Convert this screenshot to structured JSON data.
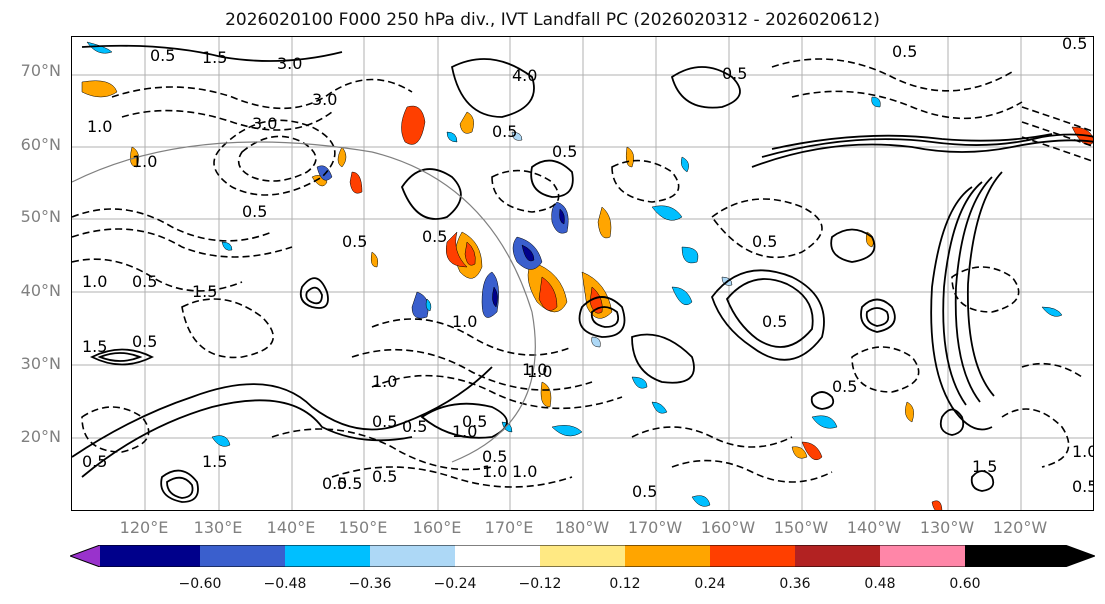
{
  "title": "2026020100 F000 250 hPa div., IVT Landfall PC (2026020312 - 2026020612)",
  "map": {
    "lat_labels": [
      "70°N",
      "60°N",
      "50°N",
      "40°N",
      "30°N",
      "20°N"
    ],
    "lon_labels": [
      "120°E",
      "130°E",
      "140°E",
      "150°E",
      "160°E",
      "170°E",
      "180°W",
      "170°W",
      "160°W",
      "150°W",
      "140°W",
      "130°W",
      "120°W"
    ],
    "contour_labels": [
      "0.5",
      "1.5",
      "3.0",
      "4.0",
      "3.0",
      "0.5",
      "0.5",
      "1.0",
      "0.5",
      "0.5",
      "3.0",
      "1.0",
      "0.5",
      "0.5",
      "1.0",
      "0.5",
      "0.5",
      "1.0",
      "1.0",
      "1.5",
      "0.5",
      "0.5",
      "1.0",
      "0.5",
      "0.5",
      "0.5",
      "0.5",
      "1.0",
      "0.5",
      "0.5",
      "0.5",
      "1.5",
      "0.5",
      "1.5",
      "0.5",
      "0.5",
      "1.0",
      "1.0",
      "1.0",
      "0.5",
      "1.0",
      "0.5",
      "1.5",
      "0.5"
    ],
    "colors": {
      "gridline": "#b0b0b0",
      "coastline": "#000000",
      "contour": "#000000"
    }
  },
  "colorbar": {
    "colors": [
      "#9932CC",
      "#00008B",
      "#3A5FCD",
      "#00BFFF",
      "#ADD8F6",
      "#FFFFFF",
      "#FFE983",
      "#FFA500",
      "#FF3F00",
      "#B22222",
      "#FF86A8"
    ],
    "tick_labels": [
      "−0.60",
      "−0.48",
      "−0.36",
      "−0.24",
      "−0.12",
      "0.12",
      "0.24",
      "0.36",
      "0.48",
      "0.60"
    ]
  }
}
